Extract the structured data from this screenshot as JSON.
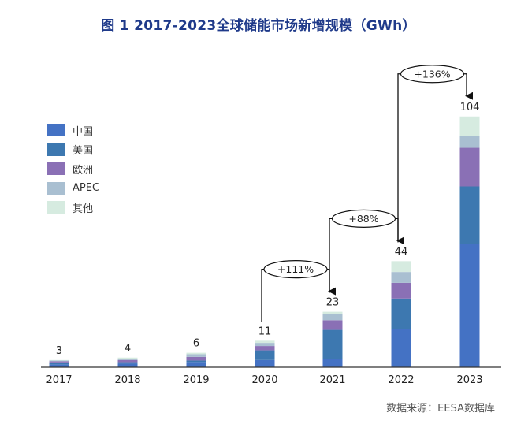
{
  "chart_data": {
    "type": "bar",
    "stacked": true,
    "title": "图 1  2017-2023全球储能市场新增规模（GWh）",
    "xlabel": "",
    "ylabel": "",
    "ylim": [
      0,
      104
    ],
    "grid": false,
    "legend_position": "left",
    "categories": [
      "2017",
      "2018",
      "2019",
      "2020",
      "2021",
      "2022",
      "2023"
    ],
    "totals": [
      3,
      4,
      6,
      11,
      23,
      44,
      104
    ],
    "series": [
      {
        "name": "中国",
        "color": "#4472c4",
        "values": [
          1.2,
          1.5,
          2.2,
          3.0,
          3.5,
          16.0,
          51.0
        ]
      },
      {
        "name": "美国",
        "color": "#3d78b0",
        "values": [
          0.8,
          0.6,
          0.6,
          4.0,
          12.0,
          12.5,
          24.0
        ]
      },
      {
        "name": "欧洲",
        "color": "#8a70b5",
        "values": [
          0.5,
          0.9,
          1.5,
          1.8,
          4.0,
          6.5,
          16.0
        ]
      },
      {
        "name": "APEC",
        "color": "#a9bfd1",
        "values": [
          0.3,
          0.6,
          1.1,
          1.3,
          2.5,
          4.5,
          5.0
        ]
      },
      {
        "name": "其他",
        "color": "#d6ebe0",
        "values": [
          0.2,
          0.4,
          0.6,
          0.9,
          1.0,
          4.5,
          8.0
        ]
      }
    ],
    "annotations": [
      {
        "from": "2020",
        "to": "2021",
        "label": "+111%"
      },
      {
        "from": "2021",
        "to": "2022",
        "label": "+88%"
      },
      {
        "from": "2022",
        "to": "2023",
        "label": "+136%"
      }
    ]
  },
  "source": "数据来源：EESA数据库"
}
